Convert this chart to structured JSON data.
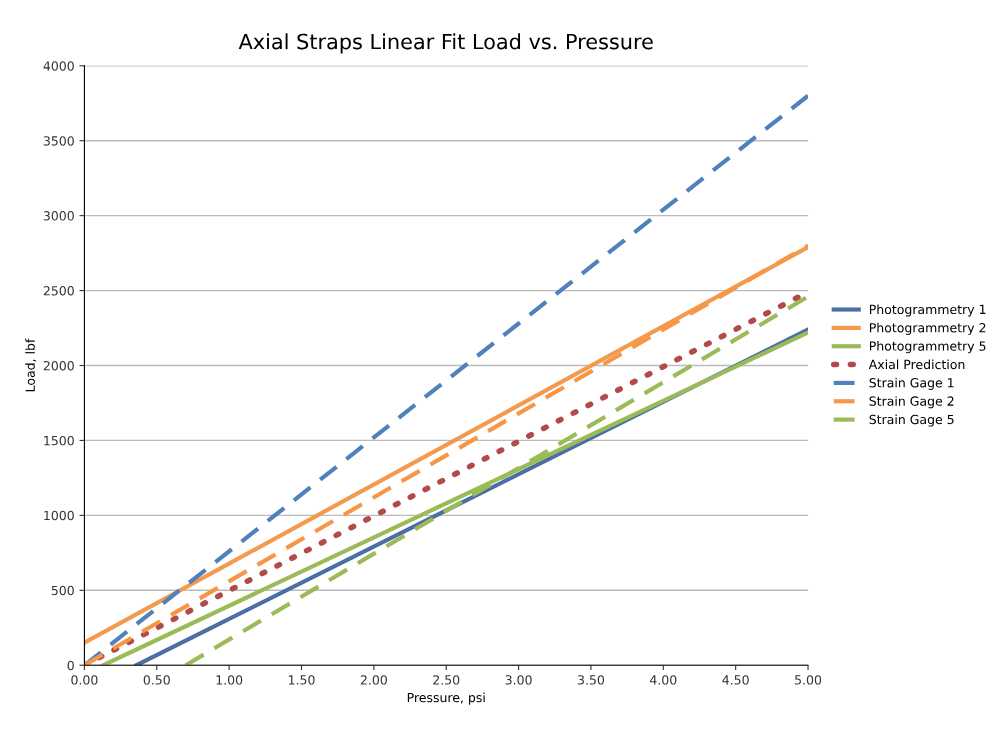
{
  "chart_data": {
    "type": "line",
    "title": "Axial Straps Linear Fit Load vs. Pressure",
    "xlabel": "Pressure, psi",
    "ylabel": "Load, lbf",
    "xlim": [
      0,
      5
    ],
    "xticks": [
      {
        "value": 0,
        "label": "0.00"
      },
      {
        "value": 0.5,
        "label": "0.50"
      },
      {
        "value": 1,
        "label": "1.00"
      },
      {
        "value": 1.5,
        "label": "1.50"
      },
      {
        "value": 2,
        "label": "2.00"
      },
      {
        "value": 2.5,
        "label": "2.50"
      },
      {
        "value": 3,
        "label": "3.00"
      },
      {
        "value": 3.5,
        "label": "3.50"
      },
      {
        "value": 4,
        "label": "4.00"
      },
      {
        "value": 4.5,
        "label": "4.50"
      },
      {
        "value": 5,
        "label": "5.00"
      }
    ],
    "ylim": [
      0,
      4000
    ],
    "yticks": [
      0,
      500,
      1000,
      1500,
      2000,
      2500,
      3000,
      3500,
      4000
    ],
    "grid": "y",
    "legend": "right",
    "marker": "none",
    "series": [
      {
        "name": "Photogrammetry 1",
        "color": "#4a6fa5",
        "x": [
          0.36,
          5
        ],
        "values": [
          0,
          2240
        ],
        "line_style": "solid"
      },
      {
        "name": "Photogrammetry 2",
        "color": "#f39a4e",
        "x": [
          0,
          5
        ],
        "values": [
          150,
          2790
        ],
        "line_style": "solid"
      },
      {
        "name": "Photogrammetry 5",
        "color": "#9bbb59",
        "x": [
          0.13,
          5
        ],
        "values": [
          0,
          2220
        ],
        "line_style": "solid"
      },
      {
        "name": "Axial Prediction",
        "color": "#b24a4a",
        "x": [
          0,
          5
        ],
        "values": [
          0,
          2490
        ],
        "line_style": "dotted"
      },
      {
        "name": "Strain Gage 1",
        "color": "#4f81bd",
        "x": [
          0,
          5
        ],
        "values": [
          0,
          3800
        ],
        "line_style": "dashed"
      },
      {
        "name": "Strain Gage 2",
        "color": "#f79646",
        "x": [
          0,
          5
        ],
        "values": [
          0,
          2800
        ],
        "line_style": "dashed"
      },
      {
        "name": "Strain Gage 5",
        "color": "#9bbb59",
        "x": [
          0.7,
          5
        ],
        "values": [
          0,
          2460
        ],
        "line_style": "dashed"
      }
    ]
  }
}
